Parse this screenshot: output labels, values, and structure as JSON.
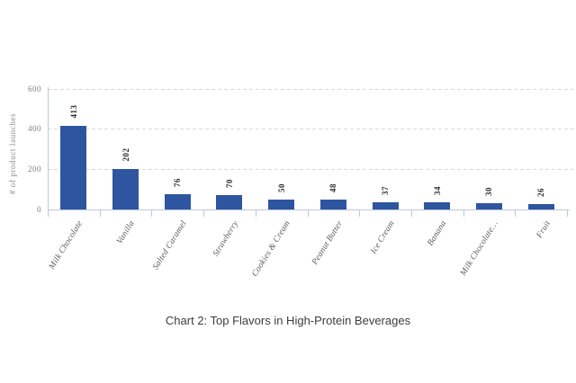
{
  "figure": {
    "caption": "Chart 2: Top Flavors in High-Protein Beverages"
  },
  "chart_data": {
    "type": "bar",
    "title": "",
    "categories": [
      "Milk Chocolate",
      "Vanilla",
      "Salted Caramel",
      "Strawberry",
      "Cookies & Cream",
      "Peanut Butter",
      "Ice Cream",
      "Banana",
      "Milk Chocolate…",
      "Fruit"
    ],
    "values": [
      413,
      202,
      76,
      70,
      50,
      48,
      37,
      34,
      30,
      26
    ],
    "xlabel": "",
    "ylabel": "# of product launches",
    "yticks": [
      0,
      200,
      400,
      600
    ],
    "ylim": [
      0,
      600
    ],
    "grid": "horizontal-dashed",
    "legend_position": "none",
    "colors": {
      "bar": "#2e55a0",
      "gridline": "#d9d9d9",
      "axis_line": "#bcc8da",
      "tick_label": "#7e7e7e",
      "category_label": "#5a5a5a",
      "value_label": "#2b2b2b",
      "caption": "#3d3d3d"
    }
  }
}
